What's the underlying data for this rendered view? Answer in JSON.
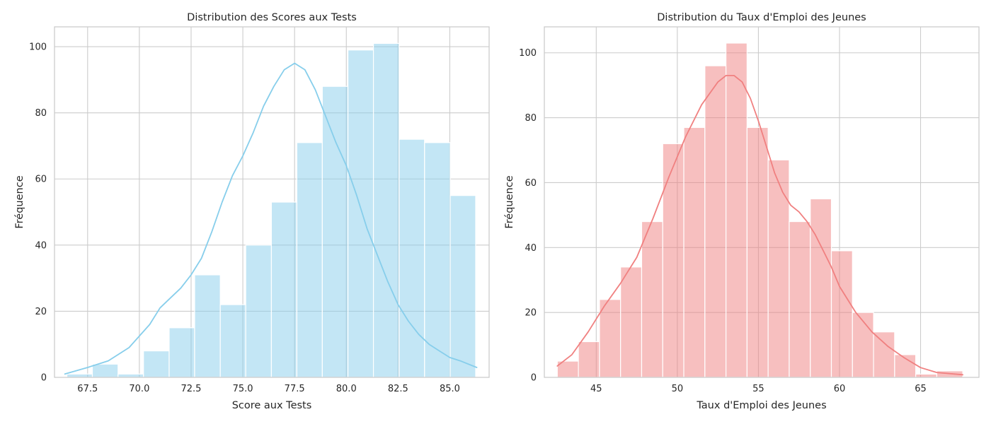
{
  "chart_data": [
    {
      "type": "bar",
      "subtype": "histogram_with_kde",
      "title": "Distribution des Scores aux Tests",
      "xlabel": "Score aux Tests",
      "ylabel": "Fréquence",
      "xlim": [
        65.9,
        86.9
      ],
      "ylim": [
        0,
        106
      ],
      "xticks": [
        67.5,
        70.0,
        72.5,
        75.0,
        77.5,
        80.0,
        82.5,
        85.0
      ],
      "xtick_labels": [
        "67.5",
        "70.0",
        "72.5",
        "75.0",
        "77.5",
        "80.0",
        "82.5",
        "85.0"
      ],
      "yticks": [
        0,
        20,
        40,
        60,
        80,
        100
      ],
      "ytick_labels": [
        "0",
        "20",
        "40",
        "60",
        "80",
        "100"
      ],
      "grid": true,
      "bar_color": "#87ceeb",
      "kde_color": "#87ceeb",
      "bins": [
        {
          "start": 66.5,
          "end": 67.73,
          "value": 1
        },
        {
          "start": 67.73,
          "end": 68.97,
          "value": 4
        },
        {
          "start": 68.97,
          "end": 70.2,
          "value": 1
        },
        {
          "start": 70.2,
          "end": 71.44,
          "value": 8
        },
        {
          "start": 71.44,
          "end": 72.67,
          "value": 15
        },
        {
          "start": 72.67,
          "end": 73.91,
          "value": 31
        },
        {
          "start": 73.91,
          "end": 75.14,
          "value": 22
        },
        {
          "start": 75.14,
          "end": 76.38,
          "value": 40
        },
        {
          "start": 76.38,
          "end": 77.61,
          "value": 53
        },
        {
          "start": 77.61,
          "end": 78.84,
          "value": 71
        },
        {
          "start": 78.84,
          "end": 80.08,
          "value": 88
        },
        {
          "start": 80.08,
          "end": 81.31,
          "value": 99
        },
        {
          "start": 81.31,
          "end": 82.55,
          "value": 101
        },
        {
          "start": 82.55,
          "end": 83.78,
          "value": 72
        },
        {
          "start": 83.78,
          "end": 85.02,
          "value": 71
        },
        {
          "start": 85.02,
          "end": 86.25,
          "value": 55
        }
      ],
      "kde": {
        "x": [
          66.4,
          67.5,
          68.5,
          69.5,
          70.5,
          71.0,
          71.5,
          72.0,
          72.5,
          73.0,
          73.5,
          74.0,
          74.5,
          75.0,
          75.5,
          76.0,
          76.5,
          77.0,
          77.5,
          78.0,
          78.5,
          79.0,
          79.5,
          80.0,
          80.5,
          81.0,
          81.5,
          82.0,
          82.5,
          83.0,
          83.5,
          84.0,
          84.5,
          85.0,
          85.5,
          86.3
        ],
        "y": [
          1,
          3,
          5,
          9,
          16,
          21,
          24,
          27,
          31,
          36,
          44,
          53,
          61,
          67,
          74,
          82,
          88,
          93,
          95,
          93,
          87,
          79,
          71,
          64,
          55,
          45,
          37,
          29,
          22,
          17,
          13,
          10,
          8,
          6,
          5,
          3
        ]
      }
    },
    {
      "type": "bar",
      "subtype": "histogram_with_kde",
      "title": "Distribution du Taux d'Emploi des Jeunes",
      "xlabel": "Taux d'Emploi des Jeunes",
      "ylabel": "Fréquence",
      "xlim": [
        41.8,
        68.6
      ],
      "ylim": [
        0,
        108
      ],
      "xticks": [
        45,
        50,
        55,
        60,
        65
      ],
      "xtick_labels": [
        "45",
        "50",
        "55",
        "60",
        "65"
      ],
      "yticks": [
        0,
        20,
        40,
        60,
        80,
        100
      ],
      "ytick_labels": [
        "0",
        "20",
        "40",
        "60",
        "80",
        "100"
      ],
      "grid": true,
      "bar_color": "#f08080",
      "kde_color": "#f08080",
      "bins": [
        {
          "start": 42.6,
          "end": 43.9,
          "value": 5
        },
        {
          "start": 43.9,
          "end": 45.2,
          "value": 11
        },
        {
          "start": 45.2,
          "end": 46.5,
          "value": 24
        },
        {
          "start": 46.5,
          "end": 47.8,
          "value": 34
        },
        {
          "start": 47.8,
          "end": 49.1,
          "value": 48
        },
        {
          "start": 49.1,
          "end": 50.4,
          "value": 72
        },
        {
          "start": 50.4,
          "end": 51.7,
          "value": 77
        },
        {
          "start": 51.7,
          "end": 53.0,
          "value": 96
        },
        {
          "start": 53.0,
          "end": 54.3,
          "value": 103
        },
        {
          "start": 54.3,
          "end": 55.6,
          "value": 77
        },
        {
          "start": 55.6,
          "end": 56.9,
          "value": 67
        },
        {
          "start": 56.9,
          "end": 58.2,
          "value": 48
        },
        {
          "start": 58.2,
          "end": 59.5,
          "value": 55
        },
        {
          "start": 59.5,
          "end": 60.8,
          "value": 39
        },
        {
          "start": 60.8,
          "end": 62.1,
          "value": 20
        },
        {
          "start": 62.1,
          "end": 63.4,
          "value": 14
        },
        {
          "start": 63.4,
          "end": 64.7,
          "value": 7
        },
        {
          "start": 64.7,
          "end": 66.0,
          "value": 1
        },
        {
          "start": 66.0,
          "end": 67.6,
          "value": 2
        }
      ],
      "kde": {
        "x": [
          42.6,
          43.5,
          44.5,
          45.5,
          46.5,
          47.5,
          48.5,
          49.5,
          50.5,
          51.5,
          52.5,
          53.0,
          53.5,
          54.0,
          54.5,
          55.0,
          55.5,
          56.0,
          56.5,
          57.0,
          57.5,
          58.0,
          58.5,
          59.0,
          59.5,
          60.0,
          61.0,
          62.0,
          63.0,
          64.0,
          65.0,
          66.0,
          67.6
        ],
        "y": [
          3.5,
          7,
          14,
          22,
          29,
          37,
          49,
          62,
          74,
          84,
          91,
          93,
          93,
          91,
          86,
          79,
          71,
          63,
          57,
          53,
          51,
          48,
          44,
          39,
          34,
          28,
          20,
          14,
          9.5,
          6,
          3,
          1.5,
          0.8
        ]
      }
    }
  ]
}
